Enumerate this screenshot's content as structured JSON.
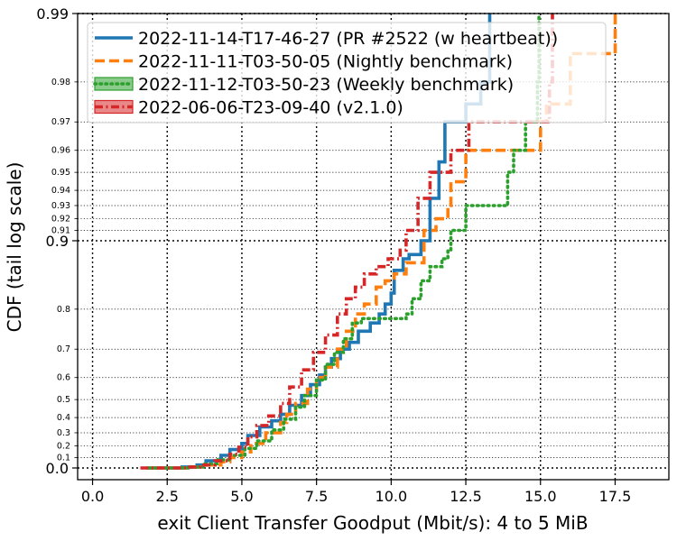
{
  "chart_data": {
    "type": "line",
    "subtype": "step-cdf",
    "title": "",
    "xlabel": "exit Client Transfer Goodput (Mbit/s): 4 to 5 MiB",
    "ylabel": "CDF (tail log scale)",
    "xlim": [
      -0.5,
      19.3
    ],
    "y_scale": "tail-log",
    "ylim": [
      0.0,
      0.99
    ],
    "x_ticks": [
      {
        "v": 0.0,
        "label": "0.0"
      },
      {
        "v": 2.5,
        "label": "2.5"
      },
      {
        "v": 5.0,
        "label": "5.0"
      },
      {
        "v": 7.5,
        "label": "7.5"
      },
      {
        "v": 10.0,
        "label": "10.0"
      },
      {
        "v": 12.5,
        "label": "12.5"
      },
      {
        "v": 15.0,
        "label": "15.0"
      },
      {
        "v": 17.5,
        "label": "17.5"
      }
    ],
    "y_major_ticks": [
      {
        "v": 0.0,
        "label": "0.0"
      },
      {
        "v": 0.9,
        "label": "0.9"
      },
      {
        "v": 0.99,
        "label": "0.99"
      }
    ],
    "y_minor_ticks": [
      {
        "v": 0.1,
        "label": "0.1"
      },
      {
        "v": 0.2,
        "label": "0.2"
      },
      {
        "v": 0.3,
        "label": "0.3"
      },
      {
        "v": 0.4,
        "label": "0.4"
      },
      {
        "v": 0.5,
        "label": "0.5"
      },
      {
        "v": 0.6,
        "label": "0.6"
      },
      {
        "v": 0.7,
        "label": "0.7"
      },
      {
        "v": 0.8,
        "label": "0.8"
      },
      {
        "v": 0.91,
        "label": "0.91"
      },
      {
        "v": 0.92,
        "label": "0.92"
      },
      {
        "v": 0.93,
        "label": "0.93"
      },
      {
        "v": 0.94,
        "label": "0.94"
      },
      {
        "v": 0.95,
        "label": "0.95"
      },
      {
        "v": 0.96,
        "label": "0.96"
      },
      {
        "v": 0.97,
        "label": "0.97"
      },
      {
        "v": 0.98,
        "label": "0.98"
      }
    ],
    "grid": true,
    "legend_position": "top",
    "series": [
      {
        "name": "2022-11-14-T17-46-27 (PR #2522 (w heartbeat))",
        "color": "#1f77b4",
        "style": "solid",
        "points": [
          [
            1.8,
            0.0
          ],
          [
            2.5,
            0.0
          ],
          [
            3.0,
            0.01
          ],
          [
            3.5,
            0.03
          ],
          [
            3.8,
            0.07
          ],
          [
            4.3,
            0.12
          ],
          [
            4.6,
            0.17
          ],
          [
            5.0,
            0.22
          ],
          [
            5.2,
            0.28
          ],
          [
            5.6,
            0.34
          ],
          [
            6.0,
            0.38
          ],
          [
            6.3,
            0.42
          ],
          [
            6.6,
            0.47
          ],
          [
            7.0,
            0.52
          ],
          [
            7.3,
            0.57
          ],
          [
            7.6,
            0.61
          ],
          [
            7.8,
            0.64
          ],
          [
            8.0,
            0.67
          ],
          [
            8.3,
            0.7
          ],
          [
            8.6,
            0.72
          ],
          [
            8.9,
            0.75
          ],
          [
            9.3,
            0.77
          ],
          [
            9.6,
            0.79
          ],
          [
            9.8,
            0.81
          ],
          [
            10.0,
            0.83
          ],
          [
            10.1,
            0.865
          ],
          [
            10.4,
            0.88
          ],
          [
            10.6,
            0.885
          ],
          [
            10.9,
            0.885
          ],
          [
            11.0,
            0.9
          ],
          [
            11.3,
            0.935
          ],
          [
            11.6,
            0.955
          ],
          [
            11.8,
            0.97
          ],
          [
            12.5,
            0.975
          ],
          [
            13.0,
            0.98
          ],
          [
            13.3,
            0.99
          ]
        ]
      },
      {
        "name": "2022-11-11-T03-50-05 (Nightly benchmark)",
        "color": "#ff7f0e",
        "style": "dashed",
        "points": [
          [
            1.9,
            0.0
          ],
          [
            2.8,
            0.0
          ],
          [
            3.3,
            0.01
          ],
          [
            3.8,
            0.03
          ],
          [
            4.3,
            0.06
          ],
          [
            4.6,
            0.1
          ],
          [
            5.0,
            0.15
          ],
          [
            5.3,
            0.22
          ],
          [
            5.8,
            0.3
          ],
          [
            6.3,
            0.37
          ],
          [
            6.5,
            0.42
          ],
          [
            6.8,
            0.48
          ],
          [
            7.2,
            0.55
          ],
          [
            7.5,
            0.6
          ],
          [
            7.8,
            0.64
          ],
          [
            8.2,
            0.7
          ],
          [
            8.5,
            0.75
          ],
          [
            8.8,
            0.79
          ],
          [
            9.1,
            0.81
          ],
          [
            9.5,
            0.84
          ],
          [
            9.8,
            0.85
          ],
          [
            10.1,
            0.86
          ],
          [
            10.5,
            0.875
          ],
          [
            11.0,
            0.875
          ],
          [
            11.1,
            0.91
          ],
          [
            11.5,
            0.92
          ],
          [
            11.9,
            0.93
          ],
          [
            12.0,
            0.945
          ],
          [
            12.5,
            0.96
          ],
          [
            13.0,
            0.96
          ],
          [
            14.5,
            0.96
          ],
          [
            15.0,
            0.97
          ],
          [
            15.2,
            0.975
          ],
          [
            15.4,
            0.975
          ],
          [
            15.8,
            0.975
          ],
          [
            16.0,
            0.985
          ],
          [
            17.3,
            0.985
          ],
          [
            17.5,
            0.99
          ]
        ]
      },
      {
        "name": "2022-11-12-T03-50-23 (Weekly benchmark)",
        "color": "#2ca02c",
        "style": "dotted",
        "points": [
          [
            1.9,
            0.0
          ],
          [
            2.7,
            0.0
          ],
          [
            3.2,
            0.01
          ],
          [
            3.7,
            0.04
          ],
          [
            4.2,
            0.08
          ],
          [
            4.6,
            0.12
          ],
          [
            5.1,
            0.18
          ],
          [
            5.5,
            0.24
          ],
          [
            6.0,
            0.32
          ],
          [
            6.4,
            0.39
          ],
          [
            6.8,
            0.46
          ],
          [
            7.1,
            0.52
          ],
          [
            7.5,
            0.59
          ],
          [
            7.8,
            0.65
          ],
          [
            8.1,
            0.69
          ],
          [
            8.4,
            0.73
          ],
          [
            8.7,
            0.77
          ],
          [
            9.0,
            0.78
          ],
          [
            10.0,
            0.78
          ],
          [
            10.5,
            0.79
          ],
          [
            10.7,
            0.82
          ],
          [
            11.0,
            0.85
          ],
          [
            11.3,
            0.87
          ],
          [
            11.7,
            0.88
          ],
          [
            11.9,
            0.89
          ],
          [
            12.0,
            0.91
          ],
          [
            12.5,
            0.93
          ],
          [
            13.0,
            0.93
          ],
          [
            13.9,
            0.95
          ],
          [
            14.1,
            0.96
          ],
          [
            14.5,
            0.97
          ],
          [
            14.9,
            0.98
          ],
          [
            14.95,
            0.99
          ]
        ]
      },
      {
        "name": "2022-06-06-T23-09-40 (v2.1.0)",
        "color": "#d62728",
        "style": "dashdot",
        "points": [
          [
            1.6,
            0.0
          ],
          [
            2.6,
            0.0
          ],
          [
            3.2,
            0.01
          ],
          [
            3.6,
            0.03
          ],
          [
            4.1,
            0.07
          ],
          [
            4.6,
            0.13
          ],
          [
            4.9,
            0.19
          ],
          [
            5.2,
            0.27
          ],
          [
            5.5,
            0.35
          ],
          [
            5.9,
            0.41
          ],
          [
            6.3,
            0.48
          ],
          [
            6.6,
            0.56
          ],
          [
            7.0,
            0.63
          ],
          [
            7.4,
            0.69
          ],
          [
            7.8,
            0.74
          ],
          [
            8.2,
            0.79
          ],
          [
            8.5,
            0.82
          ],
          [
            8.8,
            0.84
          ],
          [
            9.1,
            0.86
          ],
          [
            9.5,
            0.87
          ],
          [
            9.9,
            0.88
          ],
          [
            10.3,
            0.89
          ],
          [
            10.5,
            0.91
          ],
          [
            10.9,
            0.935
          ],
          [
            11.3,
            0.95
          ],
          [
            12.0,
            0.96
          ],
          [
            12.4,
            0.96
          ],
          [
            12.6,
            0.97
          ],
          [
            13.5,
            0.97
          ],
          [
            15.2,
            0.97
          ],
          [
            15.3,
            0.98
          ],
          [
            15.4,
            0.99
          ]
        ]
      }
    ]
  }
}
